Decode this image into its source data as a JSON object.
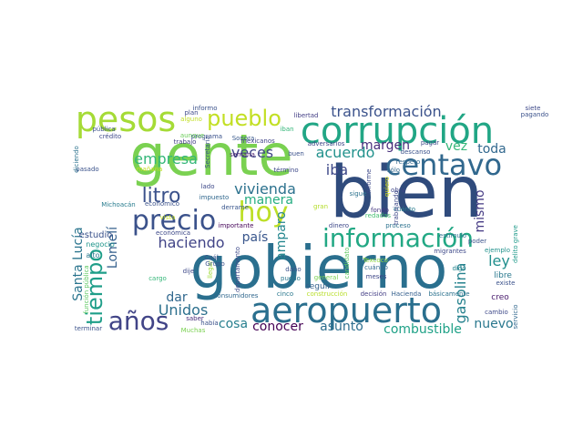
{
  "words": [
    {
      "text": "gobierno",
      "color": "#2a6f8e"
    },
    {
      "text": "bien",
      "color": "#2f4b7c"
    },
    {
      "text": "gente",
      "color": "#7ad151"
    },
    {
      "text": "aeropuerto",
      "color": "#2a6f8e"
    },
    {
      "text": "corrupción",
      "color": "#21a685"
    },
    {
      "text": "pesos",
      "color": "#a5db36"
    },
    {
      "text": "información",
      "color": "#22a884"
    },
    {
      "text": "centavo",
      "color": "#31688e"
    },
    {
      "text": "precio",
      "color": "#3b528b"
    },
    {
      "text": "hoy",
      "color": "#bddf26"
    },
    {
      "text": "años",
      "color": "#414487"
    },
    {
      "text": "tiempo",
      "color": "#1f9e89"
    },
    {
      "text": "pueblo",
      "color": "#c2df23"
    },
    {
      "text": "litro",
      "color": "#3b528b"
    },
    {
      "text": "transformación",
      "color": "#3b528b"
    },
    {
      "text": "mismo",
      "color": "#443983"
    },
    {
      "text": "vivienda",
      "color": "#2c728e"
    },
    {
      "text": "manera",
      "color": "#26ad81"
    },
    {
      "text": "empresa",
      "color": "#35b779"
    },
    {
      "text": "veces",
      "color": "#404688"
    },
    {
      "text": "haciendo",
      "color": "#414487"
    },
    {
      "text": "acuerdo",
      "color": "#21918c"
    },
    {
      "text": "margen",
      "color": "#472d7b"
    },
    {
      "text": "vez",
      "color": "#35b779"
    },
    {
      "text": "toda",
      "color": "#31688e"
    },
    {
      "text": "iba",
      "color": "#3e4989"
    },
    {
      "text": "ley",
      "color": "#218f8d"
    },
    {
      "text": "gasolina",
      "color": "#26828e"
    },
    {
      "text": "nuevo",
      "color": "#2a788e"
    },
    {
      "text": "combustible",
      "color": "#1fa187"
    },
    {
      "text": "asunto",
      "color": "#2e6e8e"
    },
    {
      "text": "conocer",
      "color": "#440154"
    },
    {
      "text": "cosa",
      "color": "#277f8e"
    },
    {
      "text": "Unidos",
      "color": "#2d708e"
    },
    {
      "text": "dar",
      "color": "#31688e"
    },
    {
      "text": "amparo",
      "color": "#24868e"
    },
    {
      "text": "país",
      "color": "#39568c"
    },
    {
      "text": "Lomelí",
      "color": "#35608d"
    },
    {
      "text": "Santa Lucía",
      "color": "#2b758e"
    },
    {
      "text": "estudio",
      "color": "#3b528b"
    },
    {
      "text": "negocio",
      "color": "#1f958b"
    },
    {
      "text": "alto",
      "color": "#2a788e"
    },
    {
      "text": "función pública",
      "color": "#5ec962"
    },
    {
      "text": "terminar",
      "color": "#3b528b"
    },
    {
      "text": "Muchas",
      "color": "#7ad151"
    },
    {
      "text": "saber",
      "color": "#472c7a"
    },
    {
      "text": "había",
      "color": "#3b528b"
    },
    {
      "text": "dije",
      "color": "#3e4989"
    },
    {
      "text": "cargo",
      "color": "#35b779"
    },
    {
      "text": "llegar",
      "color": "#a0da39"
    },
    {
      "text": "consumidores",
      "color": "#31688e"
    },
    {
      "text": "departamento",
      "color": "#3e4989"
    },
    {
      "text": "cinco",
      "color": "#2a788e"
    },
    {
      "text": "construcción",
      "color": "#b8de29"
    },
    {
      "text": "decisión",
      "color": "#433e85"
    },
    {
      "text": "Hacienda",
      "color": "#355f8d"
    },
    {
      "text": "básicamente",
      "color": "#2c728e"
    },
    {
      "text": "cambio",
      "color": "#3e4989"
    },
    {
      "text": "servicio",
      "color": "#31688e"
    },
    {
      "text": "existe",
      "color": "#3b528b"
    },
    {
      "text": "libre",
      "color": "#2a788e"
    },
    {
      "text": "creo",
      "color": "#481a6c"
    },
    {
      "text": "seguir",
      "color": "#34618d"
    },
    {
      "text": "daño",
      "color": "#3b528b"
    },
    {
      "text": "puedo",
      "color": "#2a788e"
    },
    {
      "text": "general",
      "color": "#7ad151"
    },
    {
      "text": "meses",
      "color": "#3f4788"
    },
    {
      "text": "cuándo",
      "color": "#31688e"
    },
    {
      "text": "Texcoco",
      "color": "#8fd744"
    },
    {
      "text": "digo",
      "color": "#25848e"
    },
    {
      "text": "candidato",
      "color": "#5ec962"
    },
    {
      "text": "ejemplo",
      "color": "#21918c"
    },
    {
      "text": "migrantes",
      "color": "#3e4989"
    },
    {
      "text": "delito grave",
      "color": "#1f9a8a"
    },
    {
      "text": "poder",
      "color": "#3b528b"
    },
    {
      "text": "estímulo",
      "color": "#2c728e"
    },
    {
      "text": "cuánto",
      "color": "#287c8e"
    },
    {
      "text": "proceso",
      "color": "#2c728e"
    },
    {
      "text": "dinero",
      "color": "#3e4989"
    },
    {
      "text": "fondo",
      "color": "#453781"
    },
    {
      "text": "redadas",
      "color": "#44bf70"
    },
    {
      "text": "obra",
      "color": "#3f4788"
    },
    {
      "text": "trabajando",
      "color": "#3e4989"
    },
    {
      "text": "quiero",
      "color": "#d8e219"
    },
    {
      "text": "sigue",
      "color": "#2c728e"
    },
    {
      "text": "informe",
      "color": "#3e4989"
    },
    {
      "text": "sólo",
      "color": "#31688e"
    },
    {
      "text": "descanso",
      "color": "#3b528b"
    },
    {
      "text": "pagar",
      "color": "#3e4989"
    },
    {
      "text": "adversarios",
      "color": "#404688"
    },
    {
      "text": "buen",
      "color": "#3b528b"
    },
    {
      "text": "término",
      "color": "#3e4989"
    },
    {
      "text": "semana",
      "color": "#481f70"
    },
    {
      "text": "Sonora",
      "color": "#38598c"
    },
    {
      "text": "mexicanos",
      "color": "#414487"
    },
    {
      "text": "iban",
      "color": "#35b779"
    },
    {
      "text": "libertad",
      "color": "#433e85"
    },
    {
      "text": "respeto",
      "color": "#31688e"
    },
    {
      "text": "gran",
      "color": "#b5de2b"
    },
    {
      "text": "Secretaría",
      "color": "#3b528b"
    },
    {
      "text": "Grupo",
      "color": "#3b528b"
    },
    {
      "text": "Cuál",
      "color": "#3b528b"
    },
    {
      "text": "importante",
      "color": "#450559"
    },
    {
      "text": "derrame",
      "color": "#39568c"
    },
    {
      "text": "impuesto",
      "color": "#31688e"
    },
    {
      "text": "vista",
      "color": "#c2df23"
    },
    {
      "text": "económica",
      "color": "#3e4989"
    },
    {
      "text": "Michoacán",
      "color": "#287c8e"
    },
    {
      "text": "económico",
      "color": "#3b528b"
    },
    {
      "text": "lado",
      "color": "#3e4989"
    },
    {
      "text": "mañana",
      "color": "#c2df23"
    },
    {
      "text": "pasado",
      "color": "#3b528b"
    },
    {
      "text": "diciendo",
      "color": "#2c728e"
    },
    {
      "text": "trabajo",
      "color": "#433e85"
    },
    {
      "text": "programa",
      "color": "#3b528b"
    },
    {
      "text": "crédito",
      "color": "#3e4989"
    },
    {
      "text": "pública",
      "color": "#3b528b"
    },
    {
      "text": "plan",
      "color": "#3e4989"
    },
    {
      "text": "aunque",
      "color": "#6ccd5a"
    },
    {
      "text": "alguno",
      "color": "#c2df23"
    },
    {
      "text": "informo",
      "color": "#3b528b"
    },
    {
      "text": "siete",
      "color": "#3e4989"
    },
    {
      "text": "pagando",
      "color": "#3b528b"
    }
  ]
}
